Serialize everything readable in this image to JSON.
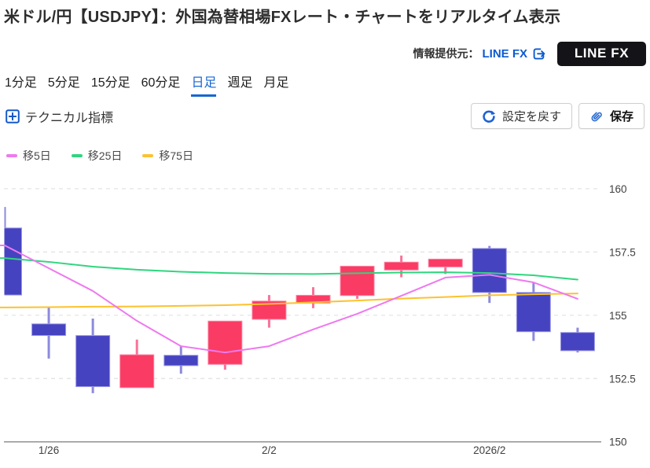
{
  "page": {
    "title": "米ドル/円【USDJPY】：外国為替相場FXレート・チャートをリアルタイム表示"
  },
  "provider": {
    "label": "情報提供元：",
    "link_text": "LINE FX",
    "logo_text": "LINE FX"
  },
  "tabs": [
    {
      "name": "1min",
      "label": "1分足",
      "active": false
    },
    {
      "name": "5min",
      "label": "5分足",
      "active": false
    },
    {
      "name": "15min",
      "label": "15分足",
      "active": false
    },
    {
      "name": "60min",
      "label": "60分足",
      "active": false
    },
    {
      "name": "daily",
      "label": "日足",
      "active": true
    },
    {
      "name": "weekly",
      "label": "週足",
      "active": false
    },
    {
      "name": "monthly",
      "label": "月足",
      "active": false
    }
  ],
  "controls": {
    "technical_label": "テクニカル指標",
    "reset_label": "設定を戻す",
    "save_label": "保存"
  },
  "legend": [
    {
      "name": "ma5",
      "label": "移5日",
      "color": "#ee79ef"
    },
    {
      "name": "ma25",
      "label": "移25日",
      "color": "#2fd67e"
    },
    {
      "name": "ma75",
      "label": "移75日",
      "color": "#fcc22f"
    }
  ],
  "chart_data": {
    "type": "candlestick",
    "title": "USD/JPY daily candlestick chart with 5/25/75-day moving averages",
    "y_axis": {
      "ticks": [
        160,
        157.5,
        155,
        152.5,
        150
      ],
      "axis_tick": 150,
      "range": [
        149.9,
        160.8
      ],
      "side": "right"
    },
    "x_labels": [
      {
        "label": "1/26",
        "candle_index": 1
      },
      {
        "label": "2/2",
        "candle_index": 6
      },
      {
        "label": "2026/2",
        "candle_index": 11
      }
    ],
    "grid": "horizontal-dashed",
    "colors": {
      "up": {
        "body": "#fa3b63",
        "wick": "#f8739a",
        "border": "#fb85a5"
      },
      "down": {
        "body": "#4643c1",
        "wick": "#8d8ade",
        "border": "#9c99e4"
      }
    },
    "candles": [
      {
        "open": 158.45,
        "high": 159.28,
        "low": 155.8,
        "close": 155.8,
        "dir": "down"
      },
      {
        "open": 154.66,
        "high": 155.31,
        "low": 153.29,
        "close": 154.2,
        "dir": "down"
      },
      {
        "open": 154.2,
        "high": 154.87,
        "low": 151.92,
        "close": 152.18,
        "dir": "down"
      },
      {
        "open": 152.14,
        "high": 154.04,
        "low": 152.14,
        "close": 153.44,
        "dir": "up"
      },
      {
        "open": 153.42,
        "high": 153.78,
        "low": 152.69,
        "close": 153.01,
        "dir": "down"
      },
      {
        "open": 153.06,
        "high": 154.77,
        "low": 152.85,
        "close": 154.77,
        "dir": "up"
      },
      {
        "open": 154.84,
        "high": 155.8,
        "low": 154.51,
        "close": 155.56,
        "dir": "up"
      },
      {
        "open": 155.48,
        "high": 156.11,
        "low": 155.28,
        "close": 155.79,
        "dir": "up"
      },
      {
        "open": 155.78,
        "high": 156.94,
        "low": 155.65,
        "close": 156.94,
        "dir": "up"
      },
      {
        "open": 156.79,
        "high": 157.36,
        "low": 156.5,
        "close": 157.1,
        "dir": "up"
      },
      {
        "open": 156.91,
        "high": 157.22,
        "low": 156.63,
        "close": 157.22,
        "dir": "up"
      },
      {
        "open": 157.64,
        "high": 157.74,
        "low": 155.49,
        "close": 155.9,
        "dir": "down"
      },
      {
        "open": 155.9,
        "high": 156.29,
        "low": 153.99,
        "close": 154.35,
        "dir": "down"
      },
      {
        "open": 154.32,
        "high": 154.51,
        "low": 153.53,
        "close": 153.6,
        "dir": "down"
      }
    ],
    "moving_averages": [
      {
        "name": "移5日",
        "color": "#ee79ef",
        "values": [
          157.76,
          156.86,
          155.96,
          154.78,
          153.78,
          153.53,
          153.78,
          154.44,
          155.06,
          155.77,
          156.49,
          156.6,
          156.3,
          155.65
        ]
      },
      {
        "name": "移25日",
        "color": "#2fd67e",
        "values": [
          157.26,
          157.11,
          156.92,
          156.8,
          156.72,
          156.67,
          156.64,
          156.63,
          156.66,
          156.69,
          156.7,
          156.67,
          156.58,
          156.41
        ]
      },
      {
        "name": "移75日",
        "color": "#fcc22f",
        "values": [
          155.31,
          155.32,
          155.34,
          155.35,
          155.37,
          155.4,
          155.45,
          155.51,
          155.58,
          155.66,
          155.72,
          155.79,
          155.83,
          155.86
        ]
      }
    ],
    "legend_position": "top-left"
  }
}
